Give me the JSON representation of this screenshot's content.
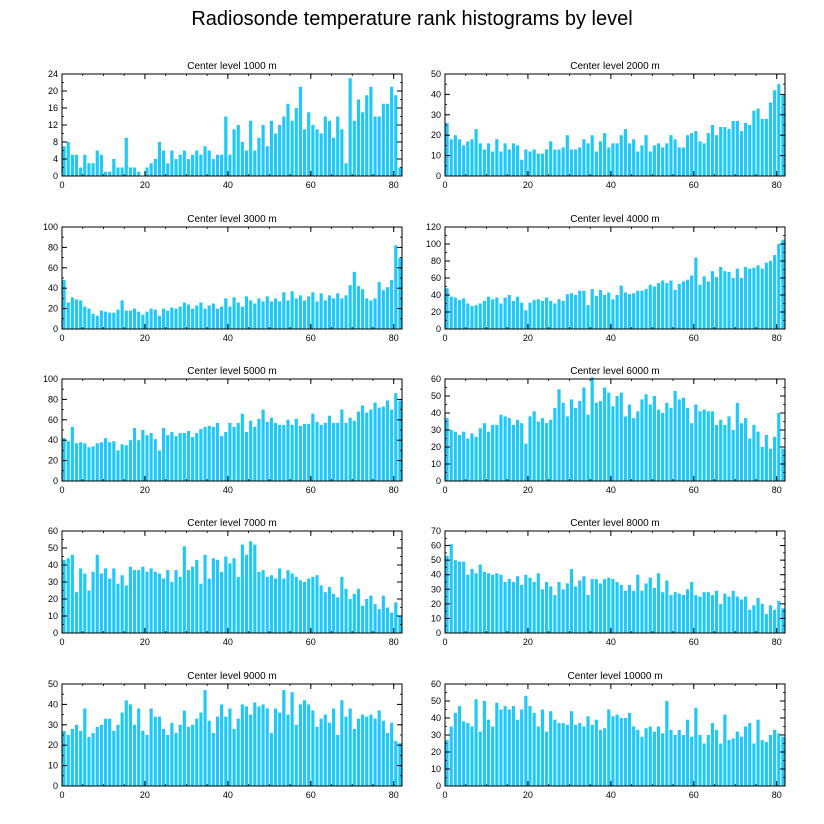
{
  "title": "Radiosonde temperature rank histograms by level",
  "bar_color": "#1EC8F7",
  "chart_data": [
    {
      "type": "bar",
      "title": "Center level 1000 m",
      "xlim": [
        0,
        82
      ],
      "ylim": [
        0,
        24
      ],
      "xticks": [
        0,
        20,
        40,
        60,
        80
      ],
      "yticks": [
        0,
        4,
        8,
        12,
        16,
        20,
        24
      ],
      "values": [
        7,
        8,
        5,
        5,
        2,
        5,
        3,
        3,
        6,
        5,
        1,
        1,
        4,
        2,
        2,
        9,
        2,
        2,
        1,
        0,
        2,
        3,
        4,
        8,
        6,
        3,
        6,
        4,
        5,
        6,
        4,
        5,
        6,
        5,
        7,
        6,
        4,
        5,
        5,
        14,
        5,
        11,
        12,
        8,
        6,
        13,
        6,
        9,
        12,
        7,
        13,
        10,
        12,
        14,
        17,
        13,
        16,
        21,
        11,
        15,
        12,
        11,
        10,
        14,
        13,
        9,
        14,
        11,
        3,
        23,
        13,
        18,
        15,
        19,
        21,
        14,
        14,
        17,
        17,
        21,
        19,
        2
      ]
    },
    {
      "type": "bar",
      "title": "Center level 2000 m",
      "xlim": [
        0,
        82
      ],
      "ylim": [
        0,
        50
      ],
      "xticks": [
        0,
        20,
        40,
        60,
        80
      ],
      "yticks": [
        0,
        10,
        20,
        30,
        40,
        50
      ],
      "values": [
        26,
        18,
        20,
        18,
        15,
        17,
        18,
        23,
        16,
        13,
        16,
        12,
        18,
        12,
        16,
        13,
        16,
        15,
        8,
        13,
        12,
        13,
        11,
        11,
        13,
        17,
        13,
        13,
        14,
        20,
        13,
        13,
        14,
        18,
        16,
        20,
        12,
        17,
        21,
        14,
        16,
        16,
        20,
        23,
        16,
        18,
        12,
        15,
        20,
        12,
        15,
        16,
        14,
        16,
        20,
        18,
        14,
        14,
        20,
        21,
        22,
        17,
        16,
        21,
        25,
        20,
        24,
        24,
        23,
        27,
        27,
        22,
        26,
        25,
        32,
        33,
        28,
        28,
        36,
        42,
        45,
        40
      ]
    },
    {
      "type": "bar",
      "title": "Center level 3000 m",
      "xlim": [
        0,
        82
      ],
      "ylim": [
        0,
        100
      ],
      "xticks": [
        0,
        20,
        40,
        60,
        80
      ],
      "yticks": [
        0,
        20,
        40,
        60,
        80,
        100
      ],
      "values": [
        48,
        26,
        31,
        29,
        28,
        22,
        20,
        15,
        13,
        18,
        17,
        16,
        16,
        19,
        28,
        18,
        18,
        20,
        17,
        14,
        17,
        20,
        19,
        13,
        20,
        18,
        21,
        20,
        22,
        26,
        24,
        20,
        23,
        26,
        20,
        23,
        25,
        20,
        22,
        30,
        22,
        31,
        26,
        22,
        32,
        28,
        25,
        30,
        27,
        32,
        27,
        30,
        27,
        36,
        28,
        37,
        30,
        33,
        28,
        32,
        36,
        27,
        35,
        28,
        33,
        30,
        35,
        30,
        33,
        43,
        56,
        42,
        39,
        30,
        28,
        30,
        46,
        38,
        41,
        48,
        82,
        70
      ]
    },
    {
      "type": "bar",
      "title": "Center level 4000 m",
      "xlim": [
        0,
        82
      ],
      "ylim": [
        0,
        120
      ],
      "xticks": [
        0,
        20,
        40,
        60,
        80
      ],
      "yticks": [
        0,
        20,
        40,
        60,
        80,
        100,
        120
      ],
      "values": [
        48,
        38,
        37,
        34,
        36,
        30,
        27,
        28,
        30,
        33,
        38,
        35,
        37,
        30,
        37,
        40,
        33,
        38,
        31,
        22,
        31,
        34,
        35,
        33,
        37,
        33,
        30,
        35,
        33,
        41,
        42,
        40,
        45,
        45,
        28,
        47,
        39,
        46,
        40,
        43,
        35,
        40,
        51,
        43,
        41,
        42,
        45,
        45,
        47,
        52,
        50,
        54,
        57,
        54,
        57,
        46,
        53,
        56,
        58,
        63,
        84,
        52,
        62,
        56,
        68,
        61,
        73,
        68,
        67,
        60,
        71,
        60,
        73,
        71,
        72,
        75,
        71,
        78,
        80,
        87,
        100,
        105
      ]
    },
    {
      "type": "bar",
      "title": "Center level 5000 m",
      "xlim": [
        0,
        82
      ],
      "ylim": [
        0,
        100
      ],
      "xticks": [
        0,
        20,
        40,
        60,
        80
      ],
      "yticks": [
        0,
        20,
        40,
        60,
        80,
        100
      ],
      "values": [
        42,
        39,
        53,
        37,
        38,
        37,
        33,
        34,
        37,
        38,
        42,
        38,
        39,
        30,
        36,
        35,
        40,
        52,
        40,
        50,
        45,
        47,
        41,
        30,
        52,
        45,
        48,
        44,
        47,
        47,
        49,
        43,
        47,
        51,
        53,
        54,
        53,
        57,
        44,
        48,
        57,
        53,
        57,
        66,
        48,
        59,
        53,
        61,
        70,
        58,
        62,
        57,
        55,
        55,
        60,
        55,
        61,
        54,
        56,
        56,
        66,
        58,
        55,
        57,
        64,
        57,
        57,
        70,
        57,
        62,
        59,
        68,
        74,
        67,
        70,
        77,
        72,
        73,
        79,
        70,
        86,
        79
      ]
    },
    {
      "type": "bar",
      "title": "Center level 6000 m",
      "xlim": [
        0,
        82
      ],
      "ylim": [
        0,
        60
      ],
      "xticks": [
        0,
        20,
        40,
        60,
        80
      ],
      "yticks": [
        0,
        10,
        20,
        30,
        40,
        50,
        60
      ],
      "values": [
        37,
        30,
        29,
        27,
        29,
        25,
        28,
        26,
        31,
        34,
        29,
        33,
        33,
        39,
        38,
        37,
        33,
        36,
        34,
        22,
        38,
        41,
        35,
        37,
        34,
        36,
        43,
        54,
        46,
        38,
        48,
        43,
        47,
        55,
        39,
        61,
        46,
        47,
        55,
        52,
        44,
        50,
        52,
        38,
        45,
        37,
        41,
        48,
        51,
        45,
        50,
        42,
        40,
        46,
        43,
        53,
        48,
        49,
        43,
        34,
        45,
        41,
        42,
        41,
        41,
        33,
        36,
        33,
        38,
        30,
        46,
        34,
        37,
        25,
        33,
        29,
        20,
        27,
        19,
        26,
        40,
        19
      ]
    },
    {
      "type": "bar",
      "title": "Center level 7000 m",
      "xlim": [
        0,
        82
      ],
      "ylim": [
        0,
        60
      ],
      "xticks": [
        0,
        20,
        40,
        60,
        80
      ],
      "yticks": [
        0,
        10,
        20,
        30,
        40,
        50,
        60
      ],
      "values": [
        43,
        44,
        46,
        24,
        38,
        35,
        25,
        36,
        46,
        35,
        38,
        32,
        38,
        29,
        34,
        28,
        39,
        37,
        37,
        39,
        36,
        38,
        36,
        35,
        32,
        37,
        30,
        37,
        33,
        51,
        37,
        39,
        43,
        29,
        46,
        32,
        44,
        43,
        36,
        45,
        41,
        44,
        33,
        52,
        46,
        54,
        52,
        36,
        37,
        33,
        34,
        32,
        38,
        32,
        37,
        35,
        33,
        31,
        30,
        32,
        33,
        34,
        28,
        24,
        27,
        23,
        21,
        33,
        26,
        20,
        23,
        26,
        16,
        20,
        22,
        17,
        14,
        22,
        15,
        12,
        18,
        10
      ]
    },
    {
      "type": "bar",
      "title": "Center level 8000 m",
      "xlim": [
        0,
        82
      ],
      "ylim": [
        0,
        70
      ],
      "xticks": [
        0,
        20,
        40,
        60,
        80
      ],
      "yticks": [
        0,
        10,
        20,
        30,
        40,
        50,
        60,
        70
      ],
      "values": [
        53,
        61,
        50,
        49,
        49,
        40,
        44,
        41,
        47,
        42,
        41,
        40,
        41,
        40,
        35,
        37,
        35,
        39,
        33,
        40,
        38,
        35,
        41,
        30,
        35,
        32,
        26,
        35,
        30,
        34,
        44,
        32,
        36,
        39,
        26,
        37,
        37,
        34,
        37,
        38,
        37,
        35,
        33,
        29,
        33,
        29,
        40,
        29,
        34,
        38,
        31,
        41,
        28,
        36,
        26,
        28,
        27,
        26,
        30,
        35,
        26,
        25,
        28,
        28,
        26,
        29,
        20,
        27,
        25,
        29,
        25,
        23,
        25,
        16,
        19,
        24,
        20,
        13,
        19,
        16,
        22,
        17
      ]
    },
    {
      "type": "bar",
      "title": "Center level 9000 m",
      "xlim": [
        0,
        82
      ],
      "ylim": [
        0,
        50
      ],
      "xticks": [
        0,
        20,
        40,
        60,
        80
      ],
      "yticks": [
        0,
        10,
        20,
        30,
        40,
        50
      ],
      "values": [
        27,
        25,
        28,
        30,
        27,
        38,
        24,
        26,
        29,
        30,
        33,
        33,
        27,
        30,
        36,
        42,
        40,
        30,
        38,
        27,
        25,
        38,
        34,
        34,
        28,
        25,
        31,
        26,
        30,
        37,
        29,
        30,
        33,
        36,
        47,
        32,
        26,
        34,
        40,
        34,
        38,
        28,
        33,
        40,
        39,
        35,
        41,
        39,
        40,
        38,
        26,
        38,
        36,
        47,
        35,
        46,
        30,
        40,
        42,
        40,
        37,
        29,
        33,
        35,
        31,
        38,
        25,
        42,
        34,
        38,
        28,
        33,
        35,
        34,
        35,
        33,
        37,
        32,
        26,
        31,
        22,
        21
      ]
    },
    {
      "type": "bar",
      "title": "Center level 10000 m",
      "xlim": [
        0,
        82
      ],
      "ylim": [
        0,
        60
      ],
      "xticks": [
        0,
        20,
        40,
        60,
        80
      ],
      "yticks": [
        0,
        10,
        20,
        30,
        40,
        50,
        60
      ],
      "values": [
        27,
        35,
        43,
        47,
        38,
        37,
        35,
        51,
        32,
        50,
        39,
        35,
        49,
        45,
        47,
        45,
        47,
        39,
        45,
        53,
        47,
        43,
        35,
        45,
        32,
        44,
        39,
        37,
        37,
        36,
        44,
        36,
        37,
        35,
        41,
        36,
        39,
        33,
        34,
        45,
        41,
        42,
        40,
        40,
        43,
        35,
        33,
        29,
        34,
        35,
        32,
        35,
        31,
        50,
        33,
        30,
        33,
        30,
        39,
        29,
        46,
        30,
        25,
        30,
        37,
        33,
        25,
        42,
        27,
        28,
        32,
        29,
        35,
        37,
        25,
        39,
        27,
        26,
        30,
        33,
        31,
        29
      ]
    }
  ]
}
